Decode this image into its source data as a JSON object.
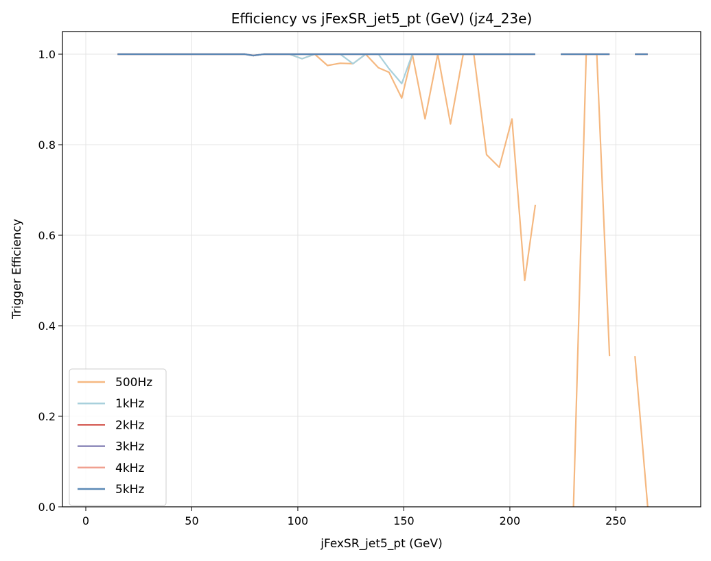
{
  "chart_data": {
    "type": "line",
    "title": "Efficiency vs jFexSR_jet5_pt (GeV) (jz4_23e)",
    "xlabel": "jFexSR_jet5_pt (GeV)",
    "ylabel": "Trigger Efficiency",
    "xlim": [
      -11,
      290
    ],
    "ylim": [
      0,
      1.05
    ],
    "xticks": [
      0,
      50,
      100,
      150,
      200,
      250
    ],
    "yticks": [
      0.0,
      0.2,
      0.4,
      0.6,
      0.8,
      1.0
    ],
    "xtick_labels": [
      "0",
      "50",
      "100",
      "150",
      "200",
      "250"
    ],
    "ytick_labels": [
      "0.0",
      "0.2",
      "0.4",
      "0.6",
      "0.8",
      "1.0"
    ],
    "grid": true,
    "legend_position": "lower-left",
    "series": [
      {
        "name": "500Hz",
        "color": "#f5b880",
        "x": [
          15,
          21,
          27,
          33,
          39,
          45,
          51,
          57,
          63,
          69,
          75,
          79,
          84,
          90,
          96,
          102,
          108,
          114,
          120,
          126,
          132,
          138,
          143,
          149,
          154,
          160,
          166,
          172,
          178,
          183,
          189,
          195,
          201,
          207,
          212,
          218,
          224,
          230,
          236,
          241,
          247,
          253,
          259,
          265
        ],
        "y": [
          1.0,
          1.0,
          1.0,
          1.0,
          1.0,
          1.0,
          1.0,
          1.0,
          1.0,
          1.0,
          1.0,
          0.997,
          1.0,
          1.0,
          1.0,
          0.99,
          1.0,
          0.975,
          0.98,
          0.979,
          1.0,
          0.97,
          0.96,
          0.903,
          1.0,
          0.857,
          1.0,
          0.846,
          1.0,
          1.0,
          0.778,
          0.75,
          0.857,
          0.5,
          0.667,
          null,
          null,
          0.0,
          1.0,
          1.0,
          0.333,
          null,
          0.333,
          0.0
        ]
      },
      {
        "name": "1kHz",
        "color": "#a8d0dc",
        "x": [
          15,
          21,
          27,
          33,
          39,
          45,
          51,
          57,
          63,
          69,
          75,
          79,
          84,
          90,
          96,
          102,
          108,
          114,
          120,
          126,
          132,
          138,
          143,
          149,
          154,
          160,
          166,
          172,
          178,
          183,
          189,
          195,
          201,
          207,
          212,
          218,
          224,
          230,
          236,
          241,
          247,
          253,
          259,
          265
        ],
        "y": [
          1.0,
          1.0,
          1.0,
          1.0,
          1.0,
          1.0,
          1.0,
          1.0,
          1.0,
          1.0,
          1.0,
          0.997,
          1.0,
          1.0,
          1.0,
          0.99,
          1.0,
          1.0,
          1.0,
          0.979,
          1.0,
          1.0,
          0.968,
          0.935,
          1.0,
          1.0,
          1.0,
          1.0,
          1.0,
          1.0,
          1.0,
          1.0,
          1.0,
          1.0,
          1.0,
          null,
          1.0,
          1.0,
          1.0,
          1.0,
          1.0,
          null,
          1.0,
          1.0
        ]
      },
      {
        "name": "2kHz",
        "color": "#d45a52",
        "x": [
          15,
          21,
          27,
          33,
          39,
          45,
          51,
          57,
          63,
          69,
          75,
          79,
          84,
          90,
          96,
          102,
          108,
          114,
          120,
          126,
          132,
          138,
          143,
          149,
          154,
          160,
          166,
          172,
          178,
          183,
          189,
          195,
          201,
          207,
          212,
          218,
          224,
          230,
          236,
          241,
          247,
          253,
          259,
          265
        ],
        "y": [
          1.0,
          1.0,
          1.0,
          1.0,
          1.0,
          1.0,
          1.0,
          1.0,
          1.0,
          1.0,
          1.0,
          0.997,
          1.0,
          1.0,
          1.0,
          1.0,
          1.0,
          1.0,
          1.0,
          1.0,
          1.0,
          1.0,
          1.0,
          1.0,
          1.0,
          1.0,
          1.0,
          1.0,
          1.0,
          1.0,
          1.0,
          1.0,
          1.0,
          1.0,
          1.0,
          null,
          1.0,
          1.0,
          1.0,
          1.0,
          1.0,
          null,
          1.0,
          1.0
        ]
      },
      {
        "name": "3kHz",
        "color": "#8a86b8",
        "x": [
          15,
          21,
          27,
          33,
          39,
          45,
          51,
          57,
          63,
          69,
          75,
          79,
          84,
          90,
          96,
          102,
          108,
          114,
          120,
          126,
          132,
          138,
          143,
          149,
          154,
          160,
          166,
          172,
          178,
          183,
          189,
          195,
          201,
          207,
          212,
          218,
          224,
          230,
          236,
          241,
          247,
          253,
          259,
          265
        ],
        "y": [
          1.0,
          1.0,
          1.0,
          1.0,
          1.0,
          1.0,
          1.0,
          1.0,
          1.0,
          1.0,
          1.0,
          0.997,
          1.0,
          1.0,
          1.0,
          1.0,
          1.0,
          1.0,
          1.0,
          1.0,
          1.0,
          1.0,
          1.0,
          1.0,
          1.0,
          1.0,
          1.0,
          1.0,
          1.0,
          1.0,
          1.0,
          1.0,
          1.0,
          1.0,
          1.0,
          null,
          1.0,
          1.0,
          1.0,
          1.0,
          1.0,
          null,
          1.0,
          1.0
        ]
      },
      {
        "name": "4kHz",
        "color": "#f0a090",
        "x": [
          15,
          21,
          27,
          33,
          39,
          45,
          51,
          57,
          63,
          69,
          75,
          79,
          84,
          90,
          96,
          102,
          108,
          114,
          120,
          126,
          132,
          138,
          143,
          149,
          154,
          160,
          166,
          172,
          178,
          183,
          189,
          195,
          201,
          207,
          212,
          218,
          224,
          230,
          236,
          241,
          247,
          253,
          259,
          265
        ],
        "y": [
          1.0,
          1.0,
          1.0,
          1.0,
          1.0,
          1.0,
          1.0,
          1.0,
          1.0,
          1.0,
          1.0,
          0.997,
          1.0,
          1.0,
          1.0,
          1.0,
          1.0,
          1.0,
          1.0,
          1.0,
          1.0,
          1.0,
          1.0,
          1.0,
          1.0,
          1.0,
          1.0,
          1.0,
          1.0,
          1.0,
          1.0,
          1.0,
          1.0,
          1.0,
          1.0,
          null,
          1.0,
          1.0,
          1.0,
          1.0,
          1.0,
          null,
          1.0,
          1.0
        ]
      },
      {
        "name": "5kHz",
        "color": "#5a88b5",
        "x": [
          15,
          21,
          27,
          33,
          39,
          45,
          51,
          57,
          63,
          69,
          75,
          79,
          84,
          90,
          96,
          102,
          108,
          114,
          120,
          126,
          132,
          138,
          143,
          149,
          154,
          160,
          166,
          172,
          178,
          183,
          189,
          195,
          201,
          207,
          212,
          218,
          224,
          230,
          236,
          241,
          247,
          253,
          259,
          265
        ],
        "y": [
          1.0,
          1.0,
          1.0,
          1.0,
          1.0,
          1.0,
          1.0,
          1.0,
          1.0,
          1.0,
          1.0,
          0.997,
          1.0,
          1.0,
          1.0,
          1.0,
          1.0,
          1.0,
          1.0,
          1.0,
          1.0,
          1.0,
          1.0,
          1.0,
          1.0,
          1.0,
          1.0,
          1.0,
          1.0,
          1.0,
          1.0,
          1.0,
          1.0,
          1.0,
          1.0,
          null,
          1.0,
          1.0,
          1.0,
          1.0,
          1.0,
          null,
          1.0,
          1.0
        ]
      }
    ]
  }
}
